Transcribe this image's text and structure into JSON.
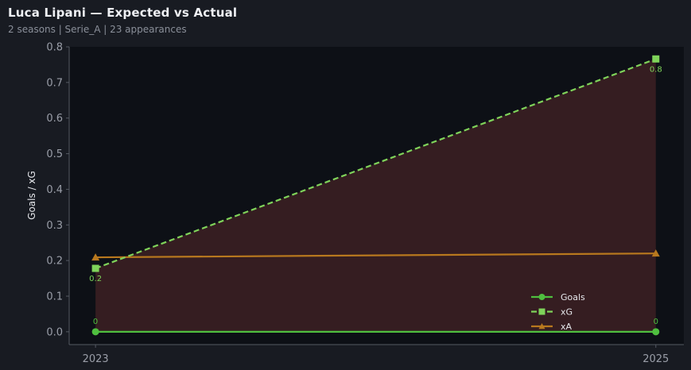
{
  "title": "Luca Lipani — Expected vs Actual",
  "subtitle": "2 seasons | Serie_A | 23 appearances",
  "chart_data": {
    "type": "line",
    "title": "Luca Lipani — Expected vs Actual",
    "xlabel": "",
    "ylabel": "Goals / xG",
    "x": [
      2023,
      2025
    ],
    "xticks": [
      "2023",
      "2025"
    ],
    "xlim": [
      2022.906,
      2025.1
    ],
    "ylim": [
      -0.036,
      0.8
    ],
    "yticks": [
      "0.0",
      "0.1",
      "0.2",
      "0.3",
      "0.4",
      "0.5",
      "0.6",
      "0.7",
      "0.8"
    ],
    "grid": false,
    "legend_position": "bottom-right",
    "series": [
      {
        "name": "Goals",
        "values": [
          0,
          0
        ],
        "labels": [
          "0",
          "0"
        ],
        "color": "#4fbf3f",
        "marker": "circle",
        "dash": false
      },
      {
        "name": "xG",
        "values": [
          0.178,
          0.766
        ],
        "labels": [
          "0.2",
          "0.8"
        ],
        "color": "#7fd35a",
        "marker": "square",
        "dash": true
      },
      {
        "name": "xA",
        "values": [
          0.209,
          0.22
        ],
        "color": "#b8781e",
        "marker": "triangle",
        "dash": false
      }
    ],
    "fill_between": {
      "series": [
        "Goals",
        "xG"
      ],
      "color": "#3a1f22"
    },
    "colors": {
      "background": "#181b22",
      "plot_background": "#0d1016"
    }
  }
}
